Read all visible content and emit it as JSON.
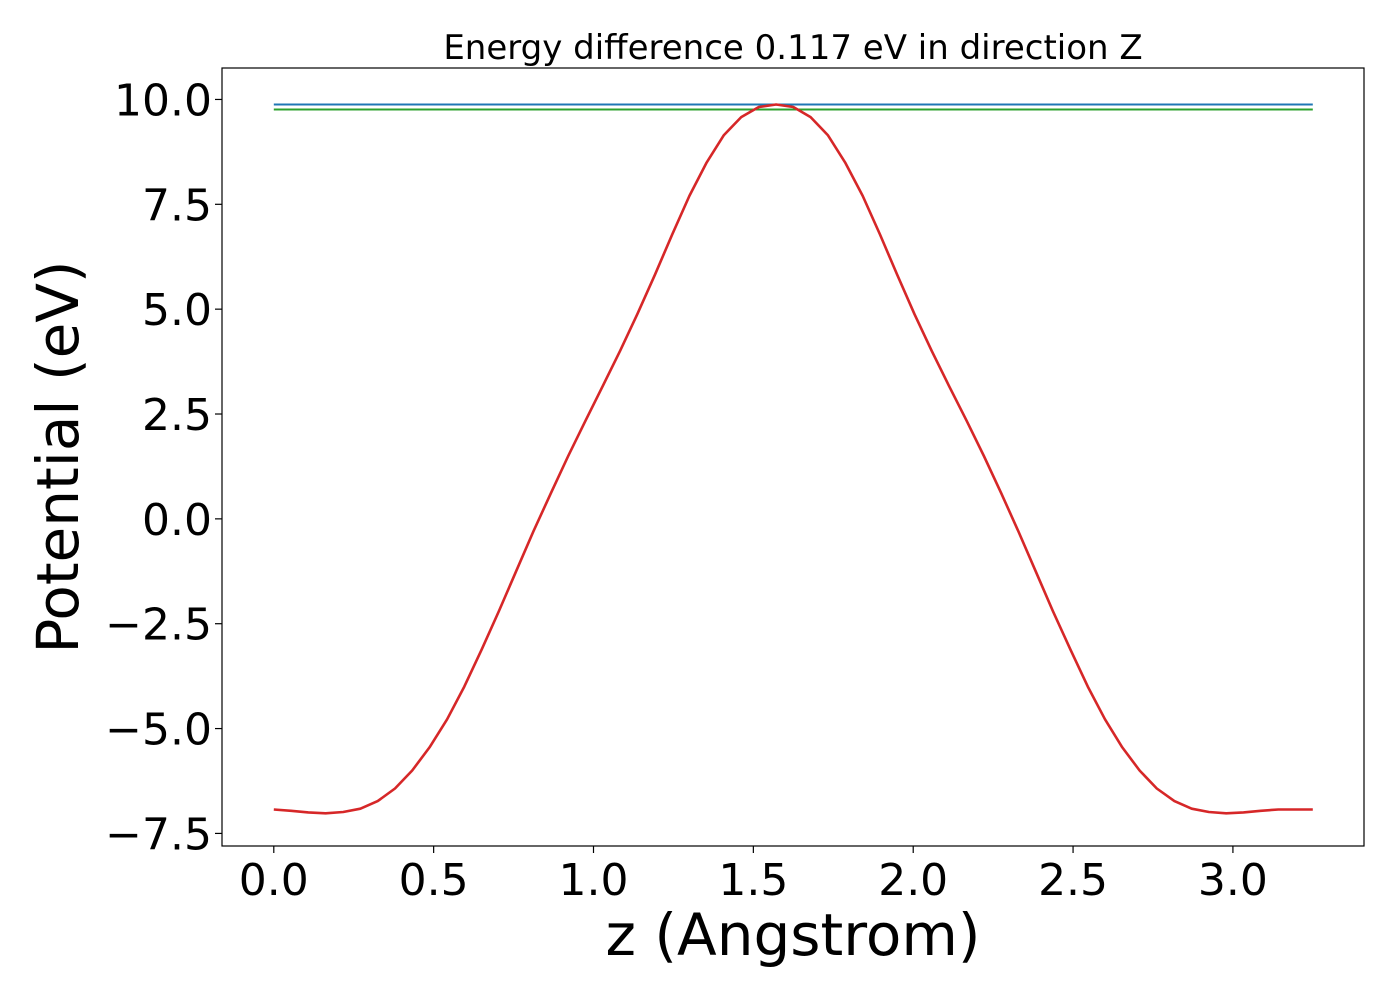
{
  "chart_data": {
    "type": "line",
    "title": "Energy difference 0.117 eV in direction Z",
    "xlabel": "z (Angstrom)",
    "ylabel": "Potential (eV)",
    "xlim": [
      -0.162,
      3.41
    ],
    "ylim": [
      -7.8,
      10.75
    ],
    "xticks": [
      0.0,
      0.5,
      1.0,
      1.5,
      2.0,
      2.5,
      3.0
    ],
    "xtick_labels": [
      "0.0",
      "0.5",
      "1.0",
      "1.5",
      "2.0",
      "2.5",
      "3.0"
    ],
    "yticks": [
      -7.5,
      -5.0,
      -2.5,
      0.0,
      2.5,
      5.0,
      7.5,
      10.0
    ],
    "ytick_labels": [
      "−7.5",
      "−5.0",
      "−2.5",
      "0.0",
      "2.5",
      "5.0",
      "7.5",
      "10.0"
    ],
    "grid": false,
    "series": [
      {
        "color": "#1f77b4",
        "x": [
          0.0,
          3.25
        ],
        "y": [
          9.88,
          9.88
        ]
      },
      {
        "color": "#2ca02c",
        "x": [
          0.0,
          3.25
        ],
        "y": [
          9.76,
          9.76
        ]
      },
      {
        "color": "#d62728",
        "x": [
          0.0,
          0.054,
          0.108,
          0.162,
          0.217,
          0.271,
          0.325,
          0.379,
          0.433,
          0.487,
          0.542,
          0.596,
          0.65,
          0.704,
          0.758,
          0.812,
          0.867,
          0.921,
          0.975,
          1.029,
          1.083,
          1.137,
          1.192,
          1.246,
          1.3,
          1.354,
          1.408,
          1.462,
          1.517,
          1.571,
          1.625,
          1.679,
          1.733,
          1.787,
          1.842,
          1.896,
          1.95,
          2.004,
          2.058,
          2.112,
          2.167,
          2.221,
          2.275,
          2.329,
          2.383,
          2.437,
          2.492,
          2.546,
          2.6,
          2.654,
          2.708,
          2.762,
          2.817,
          2.871,
          2.925,
          2.979,
          3.033,
          3.087,
          3.142,
          3.196,
          3.25
        ],
        "y": [
          -6.93,
          -6.96,
          -7.0,
          -7.02,
          -6.99,
          -6.91,
          -6.73,
          -6.43,
          -6.0,
          -5.45,
          -4.78,
          -4.0,
          -3.12,
          -2.2,
          -1.25,
          -0.3,
          0.62,
          1.5,
          2.34,
          3.17,
          4.0,
          4.88,
          5.82,
          6.78,
          7.7,
          8.5,
          9.15,
          9.58,
          9.82,
          9.88,
          9.82,
          9.58,
          9.15,
          8.5,
          7.7,
          6.78,
          5.82,
          4.88,
          4.0,
          3.17,
          2.34,
          1.5,
          0.62,
          -0.3,
          -1.25,
          -2.2,
          -3.12,
          -4.0,
          -4.78,
          -5.45,
          -6.0,
          -6.43,
          -6.73,
          -6.91,
          -6.99,
          -7.02,
          -7.0,
          -6.96,
          -6.93,
          -6.93,
          -6.93
        ]
      }
    ]
  }
}
